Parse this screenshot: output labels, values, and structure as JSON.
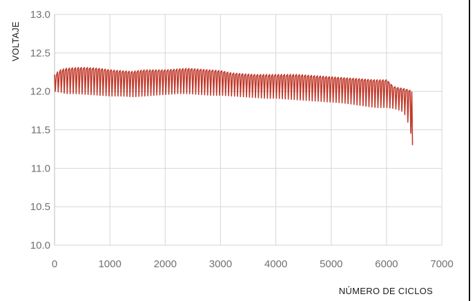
{
  "chart_data": {
    "type": "line",
    "title": "",
    "xlabel": "NÚMERO DE CICLOS",
    "ylabel": "VOLTAJE",
    "xlim": [
      0,
      7000
    ],
    "ylim": [
      10.0,
      13.0
    ],
    "x_ticks": [
      0,
      1000,
      2000,
      3000,
      4000,
      5000,
      6000,
      7000
    ],
    "y_ticks": [
      "10.0",
      "10.5",
      "11.0",
      "11.5",
      "12.0",
      "12.5",
      "13.0"
    ],
    "grid": true,
    "legend": "none",
    "series": [
      {
        "color": "#c0392b",
        "upper_envelope": {
          "x": [
            0,
            100,
            200,
            400,
            600,
            800,
            1000,
            1200,
            1400,
            1600,
            1800,
            2000,
            2200,
            2400,
            2600,
            2800,
            3000,
            3200,
            3400,
            3600,
            3800,
            4000,
            4200,
            4400,
            4600,
            4800,
            5000,
            5200,
            5400,
            5600,
            5800,
            6000,
            6100,
            6200,
            6300,
            6400,
            6470
          ],
          "y": [
            12.22,
            12.28,
            12.3,
            12.31,
            12.31,
            12.3,
            12.28,
            12.27,
            12.26,
            12.28,
            12.28,
            12.28,
            12.29,
            12.3,
            12.29,
            12.28,
            12.27,
            12.24,
            12.23,
            12.22,
            12.22,
            12.22,
            12.22,
            12.22,
            12.21,
            12.2,
            12.19,
            12.18,
            12.17,
            12.16,
            12.15,
            12.15,
            12.07,
            12.05,
            12.04,
            12.02,
            12.0
          ]
        },
        "lower_envelope": {
          "x": [
            0,
            100,
            200,
            400,
            600,
            800,
            1000,
            1200,
            1400,
            1600,
            1800,
            2000,
            2200,
            2400,
            2600,
            2800,
            3000,
            3200,
            3400,
            3600,
            3800,
            4000,
            4200,
            4400,
            4600,
            4800,
            5000,
            5200,
            5400,
            5600,
            5800,
            6000,
            6100,
            6200,
            6300,
            6400,
            6470
          ],
          "y": [
            12.0,
            11.99,
            11.97,
            11.97,
            11.96,
            11.95,
            11.94,
            11.94,
            11.93,
            11.94,
            11.95,
            11.96,
            11.97,
            11.97,
            11.96,
            11.95,
            11.95,
            11.94,
            11.93,
            11.92,
            11.91,
            11.91,
            11.9,
            11.89,
            11.88,
            11.87,
            11.86,
            11.85,
            11.83,
            11.81,
            11.79,
            11.79,
            11.78,
            11.76,
            11.73,
            11.55,
            11.3
          ]
        }
      }
    ]
  }
}
